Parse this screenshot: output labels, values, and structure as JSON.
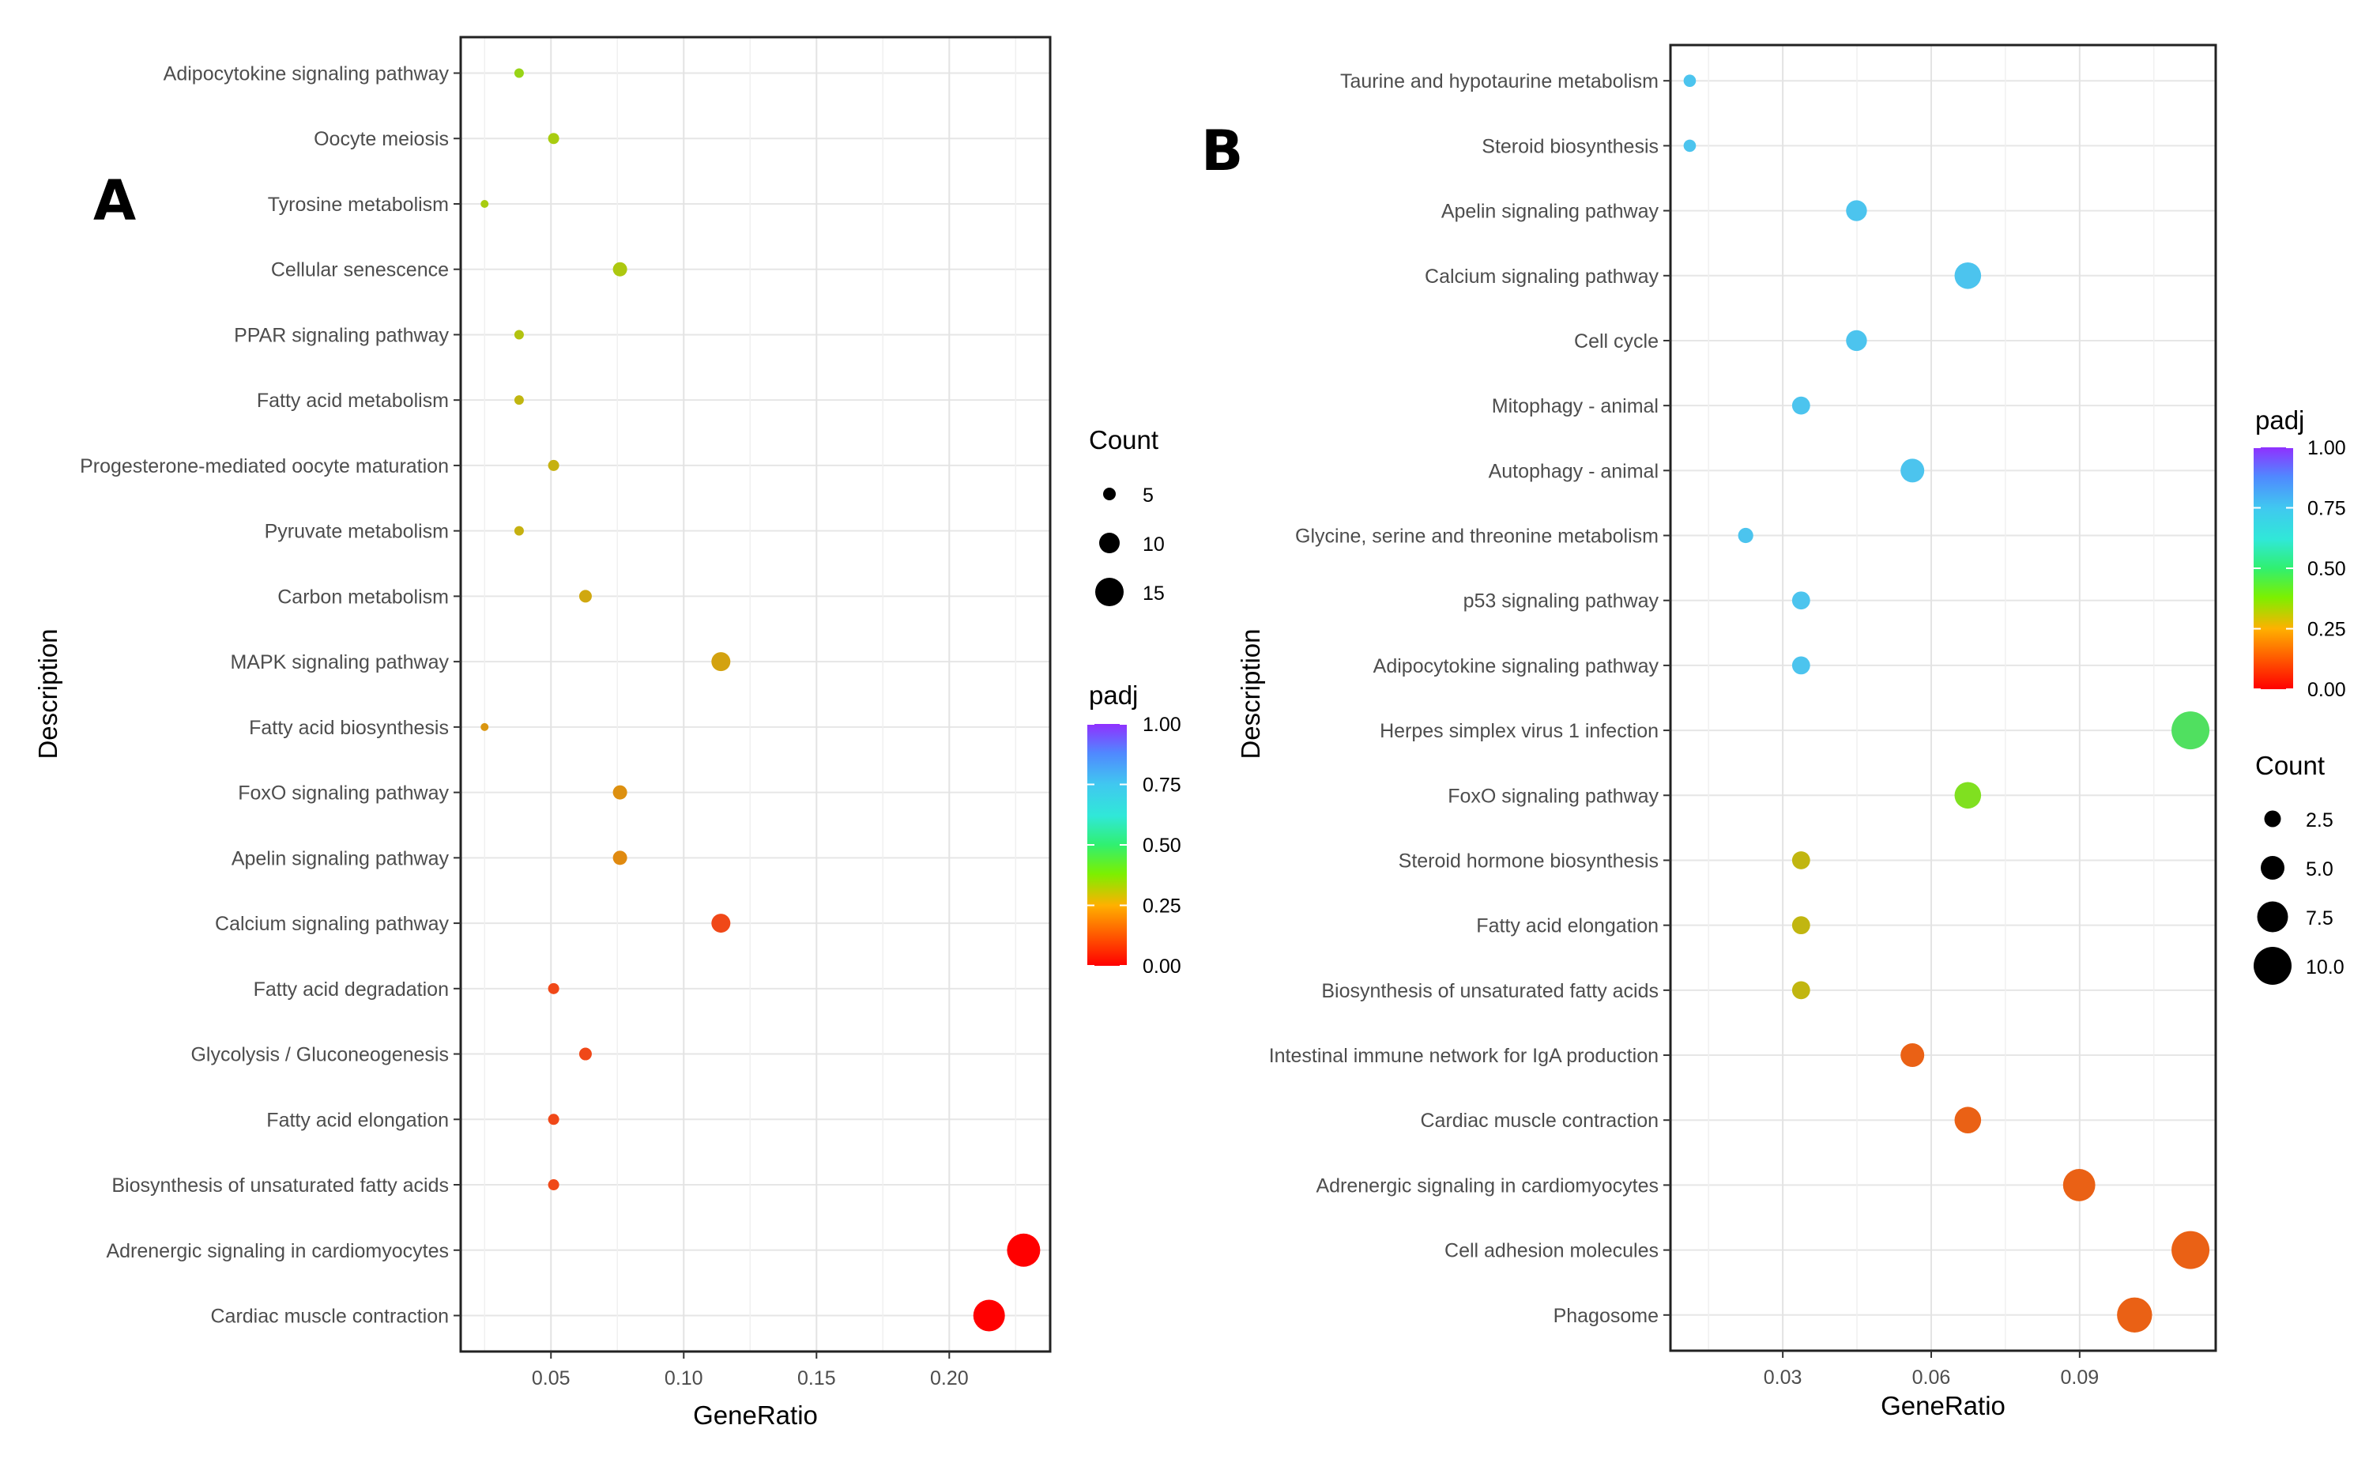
{
  "chart_data": [
    {
      "type": "scatter",
      "panel_label": "A",
      "xlabel": "GeneRatio",
      "ylabel": "Description",
      "xlim": [
        0.016,
        0.238
      ],
      "xticks": [
        0.05,
        0.1,
        0.15,
        0.2
      ],
      "xtick_labels": [
        "0.05",
        "0.10",
        "0.15",
        "0.20"
      ],
      "grid": true,
      "categories": [
        "Adipocytokine signaling pathway",
        "Oocyte meiosis",
        "Tyrosine metabolism",
        "Cellular senescence",
        "PPAR signaling pathway",
        "Fatty acid metabolism",
        "Progesterone-mediated oocyte maturation",
        "Pyruvate metabolism",
        "Carbon metabolism",
        "MAPK signaling pathway",
        "Fatty acid biosynthesis",
        "FoxO signaling pathway",
        "Apelin signaling pathway",
        "Calcium signaling pathway",
        "Fatty acid degradation",
        "Glycolysis / Gluconeogenesis",
        "Fatty acid elongation",
        "Biosynthesis of unsaturated fatty acids",
        "Adrenergic signaling in cardiomyocytes",
        "Cardiac muscle contraction"
      ],
      "points": [
        {
          "gene_ratio": 0.038,
          "count": 3,
          "padj": 0.35
        },
        {
          "gene_ratio": 0.051,
          "count": 4,
          "padj": 0.33
        },
        {
          "gene_ratio": 0.025,
          "count": 2,
          "padj": 0.33
        },
        {
          "gene_ratio": 0.076,
          "count": 6,
          "padj": 0.32
        },
        {
          "gene_ratio": 0.038,
          "count": 3,
          "padj": 0.31
        },
        {
          "gene_ratio": 0.038,
          "count": 3,
          "padj": 0.28
        },
        {
          "gene_ratio": 0.051,
          "count": 4,
          "padj": 0.27
        },
        {
          "gene_ratio": 0.038,
          "count": 3,
          "padj": 0.27
        },
        {
          "gene_ratio": 0.063,
          "count": 5,
          "padj": 0.25
        },
        {
          "gene_ratio": 0.114,
          "count": 9,
          "padj": 0.24
        },
        {
          "gene_ratio": 0.025,
          "count": 2,
          "padj": 0.22
        },
        {
          "gene_ratio": 0.076,
          "count": 6,
          "padj": 0.21
        },
        {
          "gene_ratio": 0.076,
          "count": 6,
          "padj": 0.2
        },
        {
          "gene_ratio": 0.114,
          "count": 9,
          "padj": 0.07
        },
        {
          "gene_ratio": 0.051,
          "count": 4,
          "padj": 0.07
        },
        {
          "gene_ratio": 0.063,
          "count": 5,
          "padj": 0.07
        },
        {
          "gene_ratio": 0.051,
          "count": 4,
          "padj": 0.07
        },
        {
          "gene_ratio": 0.051,
          "count": 4,
          "padj": 0.07
        },
        {
          "gene_ratio": 0.228,
          "count": 18,
          "padj": 0.0
        },
        {
          "gene_ratio": 0.215,
          "count": 17,
          "padj": 0.0
        }
      ],
      "legend_count": {
        "title": "Count",
        "values": [
          5,
          10,
          15
        ],
        "labels": [
          "5",
          "10",
          "15"
        ]
      },
      "legend_padj": {
        "title": "padj",
        "ticks": [
          1.0,
          0.75,
          0.5,
          0.25,
          0.0
        ],
        "labels": [
          "1.00",
          "0.75",
          "0.50",
          "0.25",
          "0.00"
        ]
      }
    },
    {
      "type": "scatter",
      "panel_label": "B",
      "xlabel": "GeneRatio",
      "ylabel": "Description",
      "xlim": [
        0.0073,
        0.1175
      ],
      "xticks": [
        0.03,
        0.06,
        0.09
      ],
      "xtick_labels": [
        "0.03",
        "0.06",
        "0.09"
      ],
      "grid": true,
      "categories": [
        "Taurine and hypotaurine metabolism",
        "Steroid biosynthesis",
        "Apelin signaling pathway",
        "Calcium signaling pathway",
        "Cell cycle",
        "Mitophagy - animal",
        "Autophagy - animal",
        "Glycine, serine and threonine metabolism",
        "p53 signaling pathway",
        "Adipocytokine signaling pathway",
        "Herpes simplex virus 1 infection",
        "FoxO signaling pathway",
        "Steroid hormone biosynthesis",
        "Fatty acid elongation",
        "Biosynthesis of unsaturated fatty acids",
        "Intestinal immune network for IgA production",
        "Cardiac muscle contraction",
        "Adrenergic signaling in cardiomyocytes",
        "Cell adhesion molecules",
        "Phagosome"
      ],
      "points": [
        {
          "gene_ratio": 0.0112,
          "count": 1,
          "padj": 0.68
        },
        {
          "gene_ratio": 0.0112,
          "count": 1,
          "padj": 0.68
        },
        {
          "gene_ratio": 0.0449,
          "count": 4,
          "padj": 0.68
        },
        {
          "gene_ratio": 0.0674,
          "count": 6,
          "padj": 0.68
        },
        {
          "gene_ratio": 0.0449,
          "count": 4,
          "padj": 0.68
        },
        {
          "gene_ratio": 0.0337,
          "count": 3,
          "padj": 0.68
        },
        {
          "gene_ratio": 0.0562,
          "count": 5,
          "padj": 0.68
        },
        {
          "gene_ratio": 0.0225,
          "count": 2,
          "padj": 0.68
        },
        {
          "gene_ratio": 0.0337,
          "count": 3,
          "padj": 0.68
        },
        {
          "gene_ratio": 0.0337,
          "count": 3,
          "padj": 0.68
        },
        {
          "gene_ratio": 0.1124,
          "count": 10,
          "padj": 0.45
        },
        {
          "gene_ratio": 0.0674,
          "count": 6,
          "padj": 0.38
        },
        {
          "gene_ratio": 0.0337,
          "count": 3,
          "padj": 0.28
        },
        {
          "gene_ratio": 0.0337,
          "count": 3,
          "padj": 0.28
        },
        {
          "gene_ratio": 0.0337,
          "count": 3,
          "padj": 0.28
        },
        {
          "gene_ratio": 0.0562,
          "count": 5,
          "padj": 0.12
        },
        {
          "gene_ratio": 0.0674,
          "count": 6,
          "padj": 0.12
        },
        {
          "gene_ratio": 0.0899,
          "count": 8,
          "padj": 0.12
        },
        {
          "gene_ratio": 0.1124,
          "count": 10,
          "padj": 0.12
        },
        {
          "gene_ratio": 0.1011,
          "count": 9,
          "padj": 0.12
        }
      ],
      "legend_count": {
        "title": "Count",
        "values": [
          2.5,
          5.0,
          7.5,
          10.0
        ],
        "labels": [
          "2.5",
          "5.0",
          "7.5",
          "10.0"
        ]
      },
      "legend_padj": {
        "title": "padj",
        "ticks": [
          1.0,
          0.75,
          0.5,
          0.25,
          0.0
        ],
        "labels": [
          "1.00",
          "0.75",
          "0.50",
          "0.25",
          "0.00"
        ]
      }
    }
  ]
}
